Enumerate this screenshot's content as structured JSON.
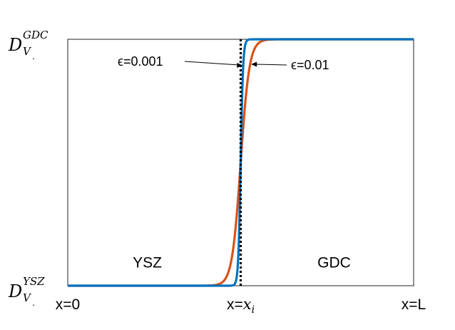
{
  "chart_data": {
    "type": "line",
    "title": "",
    "xlabel": "",
    "ylabel": "",
    "x_range": [
      0,
      1
    ],
    "y_range": [
      0,
      1
    ],
    "grid": false,
    "x_ticks": [
      {
        "x": 0.0,
        "label": "x=0"
      },
      {
        "x": 0.5,
        "label": "x=",
        "math": "x",
        "sub": "i"
      },
      {
        "x": 1.0,
        "label": "x=L"
      }
    ],
    "y_ticks": [
      {
        "y": 1.0,
        "base": "D",
        "sub": "V",
        "sup": "GDC",
        "subdot": "."
      },
      {
        "y": 0.0,
        "base": "D",
        "sub": "V",
        "sup": "YSZ",
        "subdot": "."
      }
    ],
    "regions": [
      {
        "label": "YSZ",
        "x": 0.23,
        "y": 0.06
      },
      {
        "label": "GDC",
        "x": 0.77,
        "y": 0.06
      }
    ],
    "series": [
      {
        "name": "ϵ=0.001",
        "color": "#0072bd",
        "epsilon": 0.001,
        "dash": false
      },
      {
        "name": "ϵ=0.01",
        "color": "#d95319",
        "epsilon": 0.01,
        "dash": false
      },
      {
        "name": "",
        "color": "#000000",
        "epsilon": 0,
        "dash": true
      }
    ],
    "interface_x": 0.5,
    "annotations": [
      {
        "text": "ϵ=0.001",
        "target_series": 0,
        "side": "left"
      },
      {
        "text": "ϵ=0.01",
        "target_series": 1,
        "side": "right"
      }
    ]
  }
}
